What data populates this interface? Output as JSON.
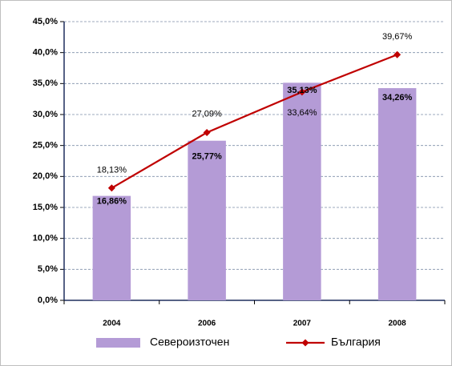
{
  "chart_data": {
    "type": "bar-line",
    "categories": [
      "2004",
      "2006",
      "2007",
      "2008"
    ],
    "series": [
      {
        "name": "Североизточен",
        "type": "bar",
        "color": "#b49bd6",
        "values": [
          16.86,
          25.77,
          35.13,
          34.26
        ],
        "value_labels": [
          "16,86%",
          "25,77%",
          "35,13%",
          "34,26%"
        ]
      },
      {
        "name": "България",
        "type": "line",
        "color": "#c00000",
        "values": [
          18.13,
          27.09,
          33.64,
          39.67
        ],
        "value_labels": [
          "18,13%",
          "27,09%",
          "33,64%",
          "39,67%"
        ]
      }
    ],
    "ylim": [
      0,
      45
    ],
    "yticks": [
      {
        "value": 0,
        "label": "0,0%"
      },
      {
        "value": 5,
        "label": "5,0%"
      },
      {
        "value": 10,
        "label": "10,0%"
      },
      {
        "value": 15,
        "label": "15,0%"
      },
      {
        "value": 20,
        "label": "20,0%"
      },
      {
        "value": 25,
        "label": "25,0%"
      },
      {
        "value": 30,
        "label": "30,0%"
      },
      {
        "value": 35,
        "label": "35,0%"
      },
      {
        "value": 40,
        "label": "40,0%"
      },
      {
        "value": 45,
        "label": "45,0%"
      }
    ],
    "grid": true,
    "legend": "bottom"
  }
}
